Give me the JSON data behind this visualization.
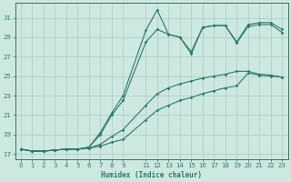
{
  "bg_color": "#cce8e0",
  "grid_color": "#aaccC4",
  "line_color": "#2d7a6a",
  "xlabel": "Humidex (Indice chaleur)",
  "ylim": [
    16.5,
    32.5
  ],
  "xlim": [
    -0.5,
    23.5
  ],
  "yticks": [
    17,
    19,
    21,
    23,
    25,
    27,
    29,
    31
  ],
  "xticks": [
    0,
    1,
    2,
    3,
    4,
    5,
    6,
    7,
    8,
    9,
    11,
    12,
    13,
    14,
    15,
    16,
    17,
    18,
    19,
    20,
    21,
    22,
    23
  ],
  "series1_x": [
    0,
    1,
    2,
    3,
    4,
    5,
    6,
    7,
    8,
    9,
    11,
    12,
    13,
    14,
    15,
    16,
    17,
    18,
    19,
    20,
    21,
    22,
    23
  ],
  "series1_y": [
    17.5,
    17.3,
    17.3,
    17.4,
    17.5,
    17.5,
    17.6,
    17.8,
    18.2,
    18.5,
    20.5,
    21.5,
    22.0,
    22.5,
    22.8,
    23.2,
    23.5,
    23.8,
    24.0,
    25.3,
    25.1,
    25.0,
    24.9
  ],
  "series2_x": [
    0,
    1,
    2,
    3,
    4,
    5,
    6,
    7,
    8,
    9,
    11,
    12,
    13,
    14,
    15,
    16,
    17,
    18,
    19,
    20,
    21,
    22,
    23
  ],
  "series2_y": [
    17.5,
    17.3,
    17.3,
    17.4,
    17.5,
    17.5,
    17.6,
    18.0,
    18.8,
    19.5,
    22.0,
    23.2,
    23.8,
    24.2,
    24.5,
    24.8,
    25.0,
    25.2,
    25.5,
    25.5,
    25.2,
    25.1,
    24.9
  ],
  "series3_x": [
    0,
    1,
    2,
    3,
    4,
    5,
    6,
    7,
    8,
    9,
    11,
    12,
    13,
    14,
    15,
    16,
    17,
    18,
    19,
    20,
    21,
    22,
    23
  ],
  "series3_y": [
    17.5,
    17.3,
    17.3,
    17.4,
    17.5,
    17.5,
    17.7,
    19.2,
    21.2,
    23.0,
    29.7,
    31.8,
    29.3,
    29.0,
    27.3,
    30.0,
    30.2,
    30.2,
    28.4,
    30.1,
    30.3,
    30.3,
    29.5
  ],
  "series4_x": [
    0,
    1,
    2,
    3,
    4,
    5,
    6,
    7,
    8,
    9,
    11,
    12,
    13,
    14,
    15,
    16,
    17,
    18,
    19,
    20,
    21,
    22,
    23
  ],
  "series4_y": [
    17.5,
    17.3,
    17.3,
    17.4,
    17.5,
    17.5,
    17.7,
    19.0,
    21.0,
    22.5,
    28.5,
    29.8,
    29.3,
    29.0,
    27.5,
    30.0,
    30.2,
    30.2,
    28.5,
    30.3,
    30.5,
    30.5,
    29.8
  ]
}
